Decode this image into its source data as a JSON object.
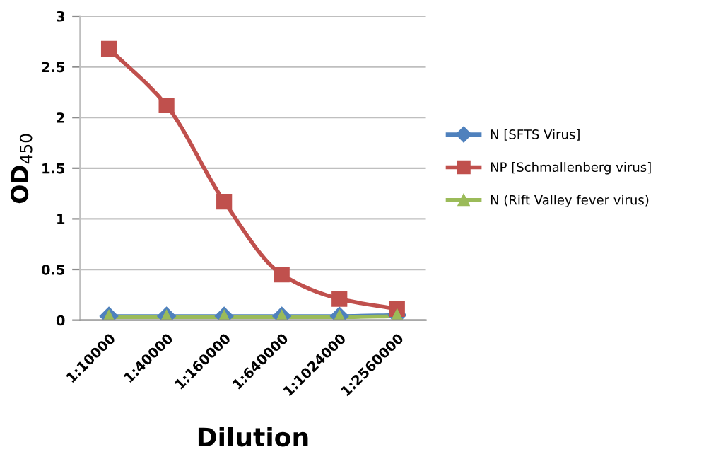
{
  "chart_data": {
    "type": "line",
    "xlabel": "Dilution",
    "ylabel": "OD$_{450}$",
    "categories": [
      "1:10000",
      "1:40000",
      "1:160000",
      "1:640000",
      "1:1024000",
      "1:2560000"
    ],
    "series": [
      {
        "name": "N [SFTS Virus]",
        "color": "#4f81bd",
        "marker": "diamond",
        "values": [
          0.04,
          0.04,
          0.04,
          0.04,
          0.04,
          0.05
        ]
      },
      {
        "name": "NP [Schmallenberg virus]",
        "color": "#c0504d",
        "marker": "square",
        "values": [
          2.68,
          2.12,
          1.17,
          0.45,
          0.21,
          0.11
        ]
      },
      {
        "name": "N (Rift Valley fever virus)",
        "color": "#9bbb59",
        "marker": "triangle",
        "values": [
          0.03,
          0.03,
          0.03,
          0.03,
          0.03,
          0.04
        ]
      }
    ],
    "ylim": [
      0,
      3
    ],
    "yticks": [
      0,
      0.5,
      1,
      1.5,
      2,
      2.5,
      3
    ],
    "grid": "y",
    "legend": "right"
  }
}
